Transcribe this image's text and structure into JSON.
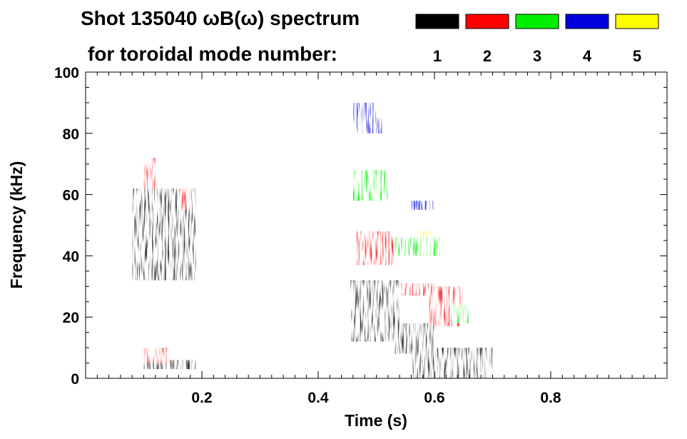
{
  "chart_data": {
    "type": "heatmap",
    "title_line1": "Shot 135040 ωB(ω) spectrum",
    "title_line2": "for toroidal mode number:",
    "xlabel": "Time (s)",
    "ylabel": "Frequency (kHz)",
    "xlim": [
      0.0,
      1.0
    ],
    "ylim": [
      0,
      100
    ],
    "x_ticks": [
      {
        "value": 0.2,
        "label": "0.2"
      },
      {
        "value": 0.4,
        "label": "0.4"
      },
      {
        "value": 0.6,
        "label": "0.6"
      },
      {
        "value": 0.8,
        "label": "0.8"
      }
    ],
    "y_ticks": [
      {
        "value": 0,
        "label": "0"
      },
      {
        "value": 20,
        "label": "20"
      },
      {
        "value": 40,
        "label": "40"
      },
      {
        "value": 60,
        "label": "60"
      },
      {
        "value": 80,
        "label": "80"
      },
      {
        "value": 100,
        "label": "100"
      }
    ],
    "legend": [
      {
        "mode": "1",
        "color": "#000000"
      },
      {
        "mode": "2",
        "color": "#ff0000"
      },
      {
        "mode": "3",
        "color": "#00ee00"
      },
      {
        "mode": "4",
        "color": "#0000dd"
      },
      {
        "mode": "5",
        "color": "#ffff00"
      }
    ],
    "series": [
      {
        "name": "n=1",
        "color": "#000000",
        "regions": [
          {
            "t": [
              0.08,
              0.19
            ],
            "f": [
              32,
              62
            ]
          },
          {
            "t": [
              0.1,
              0.19
            ],
            "f": [
              3,
              6
            ]
          },
          {
            "t": [
              0.455,
              0.54
            ],
            "f": [
              12,
              32
            ]
          },
          {
            "t": [
              0.53,
              0.6
            ],
            "f": [
              8,
              18
            ]
          },
          {
            "t": [
              0.56,
              0.7
            ],
            "f": [
              0,
              10
            ]
          }
        ]
      },
      {
        "name": "n=2",
        "color": "#ff0000",
        "regions": [
          {
            "t": [
              0.1,
              0.12
            ],
            "f": [
              62,
              72
            ]
          },
          {
            "t": [
              0.16,
              0.18
            ],
            "f": [
              55,
              62
            ]
          },
          {
            "t": [
              0.1,
              0.14
            ],
            "f": [
              5,
              10
            ]
          },
          {
            "t": [
              0.465,
              0.53
            ],
            "f": [
              37,
              48
            ]
          },
          {
            "t": [
              0.54,
              0.6
            ],
            "f": [
              27,
              31
            ]
          },
          {
            "t": [
              0.59,
              0.65
            ],
            "f": [
              17,
              30
            ]
          }
        ]
      },
      {
        "name": "n=3",
        "color": "#00ee00",
        "regions": [
          {
            "t": [
              0.46,
              0.52
            ],
            "f": [
              58,
              68
            ]
          },
          {
            "t": [
              0.53,
              0.61
            ],
            "f": [
              40,
              46
            ]
          },
          {
            "t": [
              0.63,
              0.66
            ],
            "f": [
              18,
              24
            ]
          }
        ]
      },
      {
        "name": "n=4",
        "color": "#0000dd",
        "regions": [
          {
            "t": [
              0.46,
              0.51
            ],
            "f": [
              80,
              90
            ]
          },
          {
            "t": [
              0.56,
              0.6
            ],
            "f": [
              55,
              58
            ]
          }
        ]
      },
      {
        "name": "n=5",
        "color": "#ffff00",
        "regions": [
          {
            "t": [
              0.575,
              0.6
            ],
            "f": [
              46,
              48
            ]
          }
        ]
      }
    ]
  }
}
